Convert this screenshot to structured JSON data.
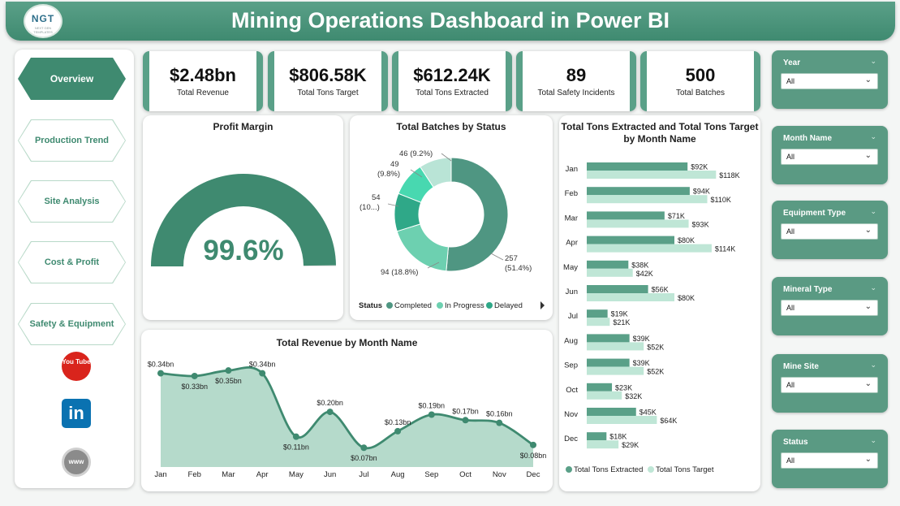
{
  "header": {
    "title": "Mining Operations Dashboard in Power BI",
    "logo_text": "NGT",
    "logo_sub": "NEXT GEN TEMPLATES"
  },
  "nav": {
    "items": [
      {
        "label": "Overview",
        "active": true
      },
      {
        "label": "Production Trend",
        "active": false
      },
      {
        "label": "Site Analysis",
        "active": false
      },
      {
        "label": "Cost & Profit",
        "active": false
      },
      {
        "label": "Safety & Equipment",
        "active": false
      }
    ],
    "social": {
      "youtube": "You Tube",
      "linkedin": "in",
      "web": "www"
    }
  },
  "kpis": [
    {
      "value": "$2.48bn",
      "label": "Total Revenue"
    },
    {
      "value": "$806.58K",
      "label": "Total Tons Target"
    },
    {
      "value": "$612.24K",
      "label": "Total Tons Extracted"
    },
    {
      "value": "89",
      "label": "Total Safety Incidents"
    },
    {
      "value": "500",
      "label": "Total Batches"
    }
  ],
  "gauge": {
    "title": "Profit Margin",
    "value_label": "99.6%",
    "fraction": 0.996,
    "color": "#3f8a70",
    "track": "#e6e6e6"
  },
  "donut": {
    "title": "Total Batches by Status",
    "legend_title": "Status",
    "chart_data": {
      "type": "pie",
      "slices": [
        {
          "name": "Completed",
          "value": 257,
          "label": "257",
          "label2": "(51.4%)",
          "color": "#4f9682"
        },
        {
          "name": "In Progress",
          "value": 94,
          "label": "94 (18.8%)",
          "color": "#6dd0b0"
        },
        {
          "name": "Delayed",
          "value": 54,
          "label": "54",
          "label2": "(10...)",
          "color": "#2fa888"
        },
        {
          "name": "",
          "value": 49,
          "label": "49",
          "label2": "(9.8%)",
          "color": "#48d8b0"
        },
        {
          "name": "",
          "value": 46,
          "label": "46 (9.2%)",
          "color": "#b9e4d6"
        }
      ]
    }
  },
  "bars": {
    "title": "Total Tons Extracted and Total Tons Target",
    "title2": "by Month Name",
    "legend": [
      "Total Tons Extracted",
      "Total Tons Target"
    ],
    "colors": [
      "#5aa088",
      "#bfe6d6"
    ],
    "chart_data": {
      "type": "bar",
      "categories": [
        "Jan",
        "Feb",
        "Mar",
        "Apr",
        "May",
        "Jun",
        "Jul",
        "Aug",
        "Sep",
        "Oct",
        "Nov",
        "Dec"
      ],
      "series": [
        {
          "name": "Total Tons Extracted",
          "values": [
            92,
            94,
            71,
            80,
            38,
            56,
            19,
            39,
            39,
            23,
            45,
            18
          ],
          "labels": [
            "$92K",
            "$94K",
            "$71K",
            "$80K",
            "$38K",
            "$56K",
            "$19K",
            "$39K",
            "$39K",
            "$23K",
            "$45K",
            "$18K"
          ]
        },
        {
          "name": "Total Tons Target",
          "values": [
            118,
            110,
            93,
            114,
            42,
            80,
            21,
            52,
            52,
            32,
            64,
            29
          ],
          "labels": [
            "$118K",
            "$110K",
            "$93K",
            "$114K",
            "$42K",
            "$80K",
            "$21K",
            "$52K",
            "$52K",
            "$32K",
            "$64K",
            "$29K"
          ]
        }
      ],
      "xlim": [
        0,
        120
      ]
    }
  },
  "area": {
    "title": "Total Revenue by Month Name",
    "color_line": "#3f8a70",
    "color_fill": "#b5dacb",
    "chart_data": {
      "type": "area",
      "categories": [
        "Jan",
        "Feb",
        "Mar",
        "Apr",
        "May",
        "Jun",
        "Jul",
        "Aug",
        "Sep",
        "Oct",
        "Nov",
        "Dec"
      ],
      "values": [
        0.34,
        0.33,
        0.35,
        0.34,
        0.11,
        0.2,
        0.07,
        0.13,
        0.19,
        0.17,
        0.16,
        0.08
      ],
      "labels": [
        "$0.34bn",
        "$0.33bn",
        "$0.35bn",
        "$0.34bn",
        "$0.11bn",
        "$0.20bn",
        "$0.07bn",
        "$0.13bn",
        "$0.19bn",
        "$0.17bn",
        "$0.16bn",
        "$0.08bn"
      ]
    }
  },
  "slicers": [
    {
      "label": "Year",
      "value": "All"
    },
    {
      "label": "Month Name",
      "value": "All"
    },
    {
      "label": "Equipment Type",
      "value": "All"
    },
    {
      "label": "Mineral Type",
      "value": "All"
    },
    {
      "label": "Mine Site",
      "value": "All"
    },
    {
      "label": "Status",
      "value": "All"
    }
  ]
}
